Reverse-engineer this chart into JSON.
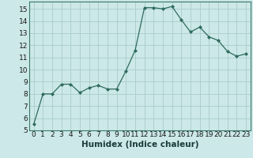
{
  "x": [
    0,
    1,
    2,
    3,
    4,
    5,
    6,
    7,
    8,
    9,
    10,
    11,
    12,
    13,
    14,
    15,
    16,
    17,
    18,
    19,
    20,
    21,
    22,
    23
  ],
  "y": [
    5.5,
    8.0,
    8.0,
    8.8,
    8.8,
    8.1,
    8.5,
    8.7,
    8.4,
    8.4,
    9.9,
    11.6,
    15.1,
    15.1,
    15.0,
    15.2,
    14.1,
    13.1,
    13.5,
    12.7,
    12.4,
    11.5,
    11.1,
    11.3
  ],
  "title": "",
  "xlabel": "Humidex (Indice chaleur)",
  "ylabel": "",
  "xlim": [
    -0.5,
    23.5
  ],
  "ylim": [
    5,
    15.6
  ],
  "yticks": [
    5,
    6,
    7,
    8,
    9,
    10,
    11,
    12,
    13,
    14,
    15
  ],
  "xticks": [
    0,
    1,
    2,
    3,
    4,
    5,
    6,
    7,
    8,
    9,
    10,
    11,
    12,
    13,
    14,
    15,
    16,
    17,
    18,
    19,
    20,
    21,
    22,
    23
  ],
  "line_color": "#2e6b5e",
  "marker_color": "#2e6b5e",
  "bg_color": "#cce8e8",
  "grid_color": "#aacccc",
  "tick_label_fontsize": 6.5,
  "xlabel_fontsize": 7.5
}
